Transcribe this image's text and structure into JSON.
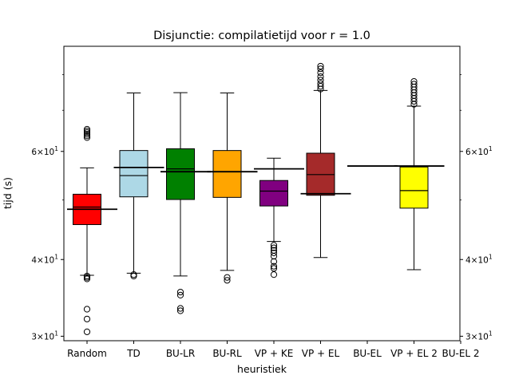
{
  "chart_data": {
    "type": "box",
    "title": "Disjunctie: compilatietijd voor r = 1.0",
    "xlabel": "heuristiek",
    "ylabel": "tijd (s)",
    "yscale": "log",
    "ylim": [
      29.5,
      89
    ],
    "y_ticks": [
      {
        "value": 30,
        "base": "3×10",
        "exp": "1"
      },
      {
        "value": 40,
        "base": "4×10",
        "exp": "1"
      },
      {
        "value": 60,
        "base": "6×10",
        "exp": "1"
      }
    ],
    "y_ticks_mirrored_right": true,
    "categories": [
      "Random",
      "TD",
      "BU-LR",
      "BU-RL",
      "VP + KE",
      "VP + EL",
      "BU-EL",
      "VP + EL 2",
      "BU-EL 2"
    ],
    "boxes": [
      {
        "category": "Random",
        "color": "#ff0000",
        "q1": 45.6,
        "median": 48.7,
        "q3": 51.1,
        "whisker_low": 37.7,
        "whisker_high": 56.4,
        "outliers_low": [
          37.2,
          37.4,
          37.6,
          33.2,
          32.0,
          30.5
        ],
        "outliers_high": [
          63.2,
          63.6,
          64.0,
          64.4,
          64.8,
          65.2
        ],
        "mean": 48.3
      },
      {
        "category": "TD",
        "color": "#add8e6",
        "q1": 50.6,
        "median": 54.8,
        "q3": 60.2,
        "whisker_low": 38.0,
        "whisker_high": 74.7,
        "outliers_low": [
          37.6,
          37.8
        ],
        "outliers_high": [],
        "mean": 56.5
      },
      {
        "category": "BU-LR",
        "color": "#008000",
        "q1": 50.1,
        "median": 56.2,
        "q3": 60.6,
        "whisker_low": 37.6,
        "whisker_high": 74.8,
        "outliers_low": [
          35.4,
          35.0,
          33.3,
          33.0
        ],
        "outliers_high": [],
        "mean": 55.6
      },
      {
        "category": "BU-RL",
        "color": "#ffa500",
        "q1": 50.5,
        "median": 55.6,
        "q3": 60.2,
        "whisker_low": 38.4,
        "whisker_high": 74.7,
        "outliers_low": [
          37.4,
          37.0
        ],
        "outliers_high": [],
        "mean": 55.6
      },
      {
        "category": "VP + KE",
        "color": "#800080",
        "q1": 48.9,
        "median": 51.7,
        "q3": 53.8,
        "whisker_low": 42.8,
        "whisker_high": 58.5,
        "outliers_low": [
          42.2,
          41.8,
          41.4,
          41.0,
          40.5,
          39.7,
          39.0,
          38.7,
          37.8
        ],
        "outliers_high": [],
        "mean": 56.2
      },
      {
        "category": "VP + EL",
        "color": "#a52a2a",
        "q1": 50.9,
        "median": 55.0,
        "q3": 59.6,
        "whisker_low": 40.3,
        "whisker_high": 75.4,
        "outliers_low": [],
        "outliers_high": [
          75.8,
          76.6,
          77.4,
          78.4,
          79.4,
          80.6,
          81.8,
          82.6
        ],
        "mean": 51.2
      },
      {
        "category": "BU-EL",
        "color": null,
        "q1": null,
        "median": null,
        "q3": null,
        "whisker_low": null,
        "whisker_high": null,
        "outliers_low": [],
        "outliers_high": [],
        "mean": 56.8
      },
      {
        "category": "VP + EL 2",
        "color": "#ffff00",
        "q1": 48.5,
        "median": 51.8,
        "q3": 56.6,
        "whisker_low": 38.5,
        "whisker_high": 71.1,
        "outliers_low": [],
        "outliers_high": [
          71.6,
          72.4,
          73.2,
          74.0,
          74.8,
          75.6,
          76.4,
          77.2,
          78.0
        ],
        "mean": 56.8
      },
      {
        "category": "BU-EL 2",
        "color": null,
        "q1": null,
        "median": null,
        "q3": null,
        "whisker_low": null,
        "whisker_high": null,
        "outliers_low": [],
        "outliers_high": [],
        "mean": null
      }
    ],
    "grid": false,
    "legend": "none"
  }
}
